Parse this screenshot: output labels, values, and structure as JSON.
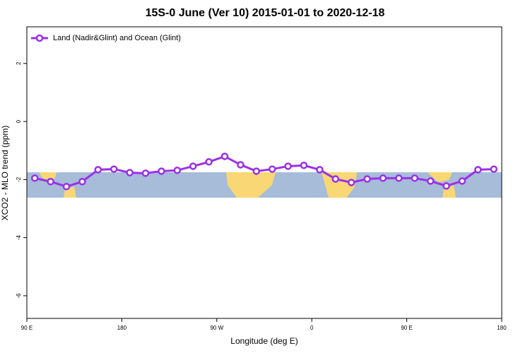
{
  "chart_data": {
    "type": "line",
    "title": "15S-0 June (Ver 10)   2015-01-01 to 2020-12-18",
    "xlabel": "Longitude (deg E)",
    "ylabel": "XCO2 - MLO trend (ppm)",
    "x": [
      97.5,
      112.5,
      127.5,
      142.5,
      157.5,
      172.5,
      187.5,
      202.5,
      217.5,
      232.5,
      247.5,
      262.5,
      277.5,
      292.5,
      307.5,
      322.5,
      337.5,
      352.5,
      367.5,
      382.5,
      397.5,
      412.5,
      427.5,
      442.5,
      457.5,
      472.5,
      487.5,
      502.5,
      517.5,
      532.5
    ],
    "series": [
      {
        "name": "Land (Nadir&Glint) and Ocean (Glint)",
        "color": "#9b30e8",
        "values": [
          -1.95,
          -2.07,
          -2.24,
          -2.07,
          -1.66,
          -1.64,
          -1.76,
          -1.78,
          -1.71,
          -1.68,
          -1.54,
          -1.39,
          -1.2,
          -1.49,
          -1.71,
          -1.64,
          -1.54,
          -1.51,
          -1.66,
          -1.98,
          -2.1,
          -1.98,
          -1.95,
          -1.95,
          -1.95,
          -2.05,
          -2.22,
          -2.05,
          -1.66,
          -1.64
        ]
      }
    ],
    "xlim": [
      90,
      540
    ],
    "xticks": [
      {
        "value": 90,
        "label": "90 E"
      },
      180,
      {
        "value": 270,
        "label": "90 W"
      },
      {
        "value": 360,
        "label": "0"
      },
      {
        "value": 450,
        "label": "90 E"
      },
      {
        "value": 540,
        "label": "180"
      }
    ],
    "ylim": [
      -6.78,
      3.26
    ],
    "yticks": [
      -6,
      -4,
      -2,
      0,
      2
    ],
    "legend": "top-left"
  }
}
